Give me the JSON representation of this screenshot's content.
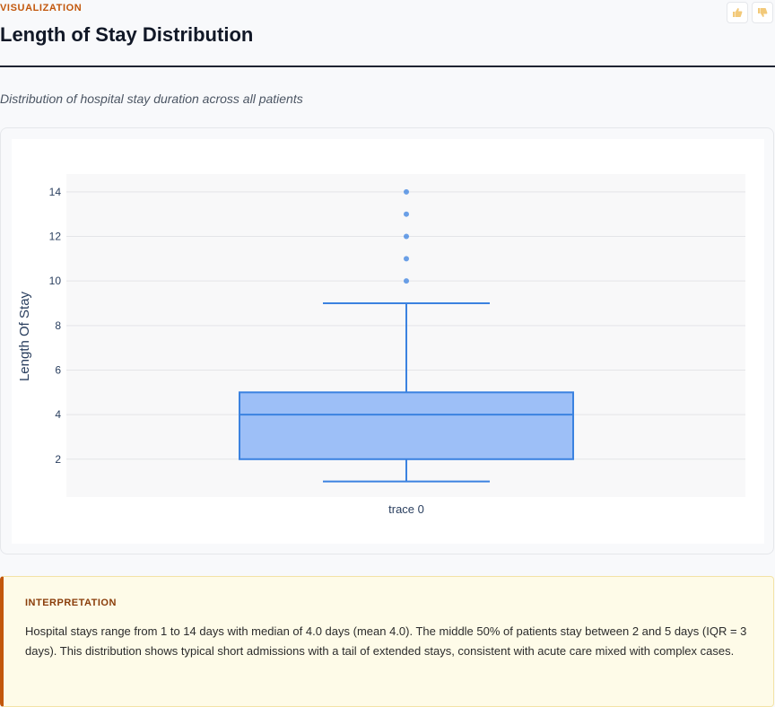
{
  "header": {
    "eyebrow": "VISUALIZATION",
    "title": "Length of Stay Distribution",
    "feedback_up_icon": "thumbs-up-icon",
    "feedback_down_icon": "thumbs-down-icon"
  },
  "subtitle": "Distribution of hospital stay duration across all patients",
  "colors": {
    "accent": "#c2570c",
    "box_fill": "#9dbff7",
    "box_line": "#3b82e0",
    "plot_bg": "#f8f8f9"
  },
  "chart_data": {
    "type": "box",
    "categories": [
      "trace 0"
    ],
    "ylabel": "Length Of Stay",
    "xlabel": "",
    "ylim": [
      0.3,
      14.8
    ],
    "yticks": [
      2,
      4,
      6,
      8,
      10,
      12,
      14
    ],
    "grid": true,
    "legend": "none",
    "series": [
      {
        "min": 1,
        "q1": 2,
        "median": 4,
        "q3": 5,
        "upper_fence": 9,
        "outliers": [
          10,
          11,
          12,
          13,
          14
        ]
      }
    ]
  },
  "interpretation": {
    "title": "INTERPRETATION",
    "text": "Hospital stays range from 1 to 14 days with median of 4.0 days (mean 4.0). The middle 50% of patients stay between 2 and 5 days (IQR = 3 days). This distribution shows typical short admissions with a tail of extended stays, consistent with acute care mixed with complex cases."
  }
}
